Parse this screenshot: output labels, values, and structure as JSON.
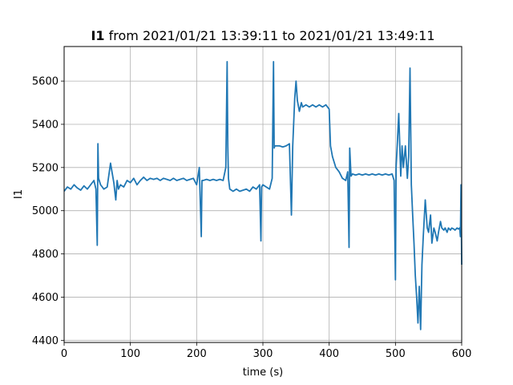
{
  "chart_data": {
    "type": "line",
    "title_bold": "I1",
    "title_rest": " from 2021/01/21 13:39:11 to 2021/01/21 13:49:11",
    "xlabel": "time (s)",
    "ylabel": "I1",
    "xlim": [
      0,
      600
    ],
    "ylim": [
      4390,
      5760
    ],
    "xticks": [
      0,
      100,
      200,
      300,
      400,
      500,
      600
    ],
    "yticks": [
      4400,
      4600,
      4800,
      5000,
      5200,
      5400,
      5600
    ],
    "grid": true,
    "legend": "none",
    "series": [
      {
        "color": "#1f77b4",
        "x": [
          0,
          5,
          10,
          15,
          20,
          25,
          30,
          35,
          40,
          45,
          48,
          50,
          51,
          52,
          55,
          60,
          65,
          70,
          75,
          78,
          80,
          82,
          85,
          90,
          95,
          100,
          105,
          110,
          115,
          120,
          125,
          130,
          135,
          140,
          145,
          150,
          155,
          160,
          165,
          170,
          175,
          180,
          185,
          190,
          195,
          200,
          204,
          207,
          208,
          210,
          215,
          220,
          225,
          230,
          235,
          240,
          244,
          246,
          247,
          248,
          250,
          255,
          260,
          265,
          270,
          275,
          280,
          285,
          290,
          295,
          297,
          298,
          300,
          305,
          310,
          314,
          316,
          317,
          318,
          320,
          325,
          330,
          335,
          340,
          343,
          345,
          348,
          350,
          352,
          355,
          358,
          360,
          365,
          370,
          375,
          380,
          385,
          390,
          395,
          400,
          402,
          405,
          410,
          415,
          420,
          425,
          428,
          430,
          431,
          433,
          435,
          440,
          445,
          450,
          455,
          460,
          465,
          470,
          475,
          480,
          485,
          490,
          495,
          498,
          500,
          501,
          503,
          505,
          508,
          510,
          512,
          515,
          518,
          520,
          522,
          524,
          526,
          528,
          530,
          532,
          534,
          536,
          538,
          540,
          542,
          545,
          548,
          550,
          553,
          555,
          558,
          560,
          563,
          565,
          568,
          570,
          573,
          575,
          578,
          580,
          583,
          585,
          588,
          590,
          593,
          595,
          597,
          598,
          599,
          600
        ],
        "y": [
          5090,
          5110,
          5100,
          5120,
          5105,
          5095,
          5115,
          5100,
          5120,
          5140,
          5100,
          4840,
          5310,
          5150,
          5120,
          5100,
          5110,
          5220,
          5130,
          5050,
          5140,
          5100,
          5120,
          5110,
          5140,
          5130,
          5150,
          5120,
          5140,
          5155,
          5140,
          5150,
          5145,
          5150,
          5140,
          5150,
          5145,
          5140,
          5150,
          5140,
          5145,
          5150,
          5140,
          5145,
          5150,
          5120,
          5200,
          4880,
          5140,
          5140,
          5145,
          5140,
          5145,
          5140,
          5145,
          5140,
          5200,
          5690,
          5300,
          5150,
          5100,
          5090,
          5100,
          5090,
          5095,
          5100,
          5090,
          5110,
          5100,
          5120,
          4860,
          5110,
          5120,
          5110,
          5100,
          5150,
          5690,
          5290,
          5300,
          5300,
          5300,
          5295,
          5300,
          5310,
          4980,
          5300,
          5520,
          5600,
          5510,
          5460,
          5500,
          5480,
          5490,
          5480,
          5490,
          5480,
          5490,
          5480,
          5490,
          5470,
          5300,
          5250,
          5200,
          5180,
          5150,
          5140,
          5180,
          4830,
          5290,
          5160,
          5170,
          5165,
          5170,
          5165,
          5170,
          5165,
          5170,
          5165,
          5170,
          5165,
          5170,
          5165,
          5170,
          5140,
          4680,
          5200,
          5320,
          5450,
          5160,
          5300,
          5200,
          5300,
          5150,
          5250,
          5660,
          5120,
          4980,
          4850,
          4700,
          4600,
          4480,
          4650,
          4450,
          4750,
          4880,
          5050,
          4920,
          4900,
          4980,
          4850,
          4920,
          4900,
          4860,
          4900,
          4950,
          4920,
          4910,
          4920,
          4900,
          4920,
          4910,
          4920,
          4915,
          4910,
          4920,
          4915,
          4920,
          4880,
          5120,
          4750
        ]
      }
    ]
  }
}
